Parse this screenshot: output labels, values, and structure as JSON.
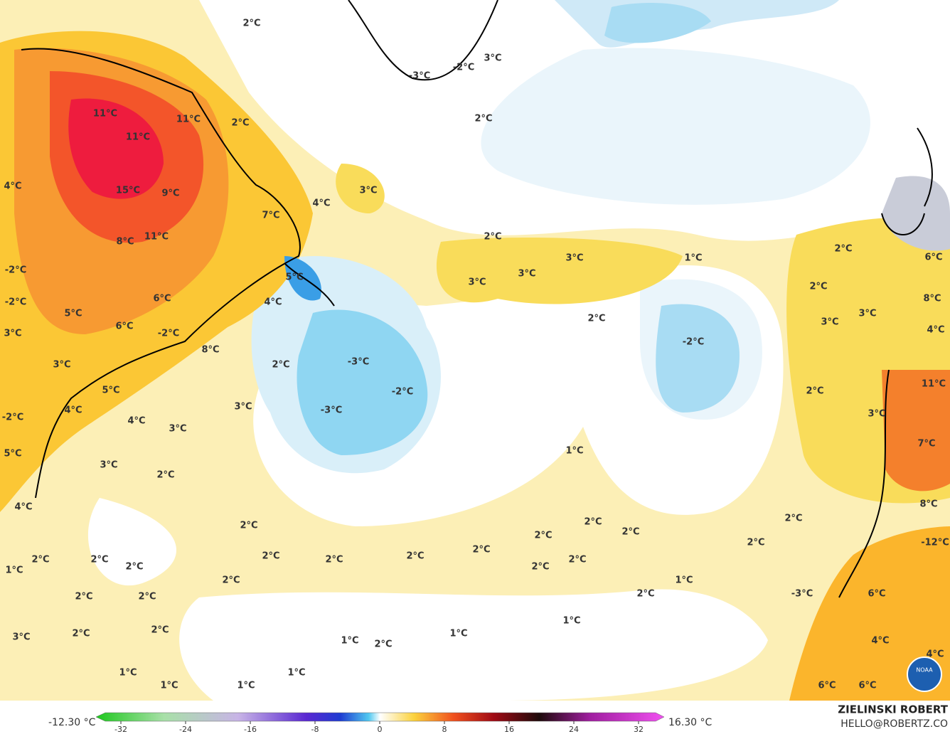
{
  "map": {
    "labels": [
      "2°C",
      "3°C",
      "-3°C",
      "-2°C",
      "2°C",
      "11°C",
      "11°C",
      "11°C",
      "2°C",
      "15°C",
      "9°C",
      "3°C",
      "4°C",
      "4°C",
      "7°C",
      "11°C",
      "8°C",
      "2°C",
      "3°C",
      "1°C",
      "3°C",
      "3°C",
      "-2°C",
      "5°C",
      "2°C",
      "6°C",
      "2°C",
      "-2°C",
      "6°C",
      "4°C",
      "8°C",
      "3°C",
      "5°C",
      "6°C",
      "3°C",
      "2°C",
      "-2°C",
      "3°C",
      "4°C",
      "-2°C",
      "8°C",
      "-3°C",
      "2°C",
      "3°C",
      "11°C",
      "-2°C",
      "5°C",
      "2°C",
      "3°C",
      "-3°C",
      "4°C",
      "-2°C",
      "3°C",
      "4°C",
      "3°C",
      "7°C",
      "5°C",
      "1°C",
      "3°C",
      "2°C",
      "8°C",
      "4°C",
      "2°C",
      "2°C",
      "2°C",
      "2°C",
      "2°C",
      "-12°C",
      "2°C",
      "2°C",
      "2°C",
      "2°C",
      "2°C",
      "2°C",
      "2°C",
      "2°C",
      "2°C",
      "2°C",
      "1°C",
      "2°C",
      "1°C",
      "-3°C",
      "6°C",
      "2°C",
      "2°C",
      "2°C",
      "1°C",
      "2°C",
      "2°C",
      "1°C",
      "3°C",
      "1°C",
      "2°C",
      "4°C",
      "4°C",
      "1°C",
      "1°C",
      "1°C",
      "1°C",
      "6°C",
      "6°C"
    ],
    "logo": "NOAA"
  },
  "legend": {
    "min_label": "-12.30 °C",
    "max_label": "16.30 °C",
    "range": [
      -32,
      32
    ],
    "ticks": [
      -32,
      -24,
      -16,
      -8,
      0,
      8,
      16,
      24,
      32
    ]
  },
  "credit": {
    "name": "ZIELINSKI ROBERT",
    "email": "HELLO@ROBERTZ.CO"
  }
}
